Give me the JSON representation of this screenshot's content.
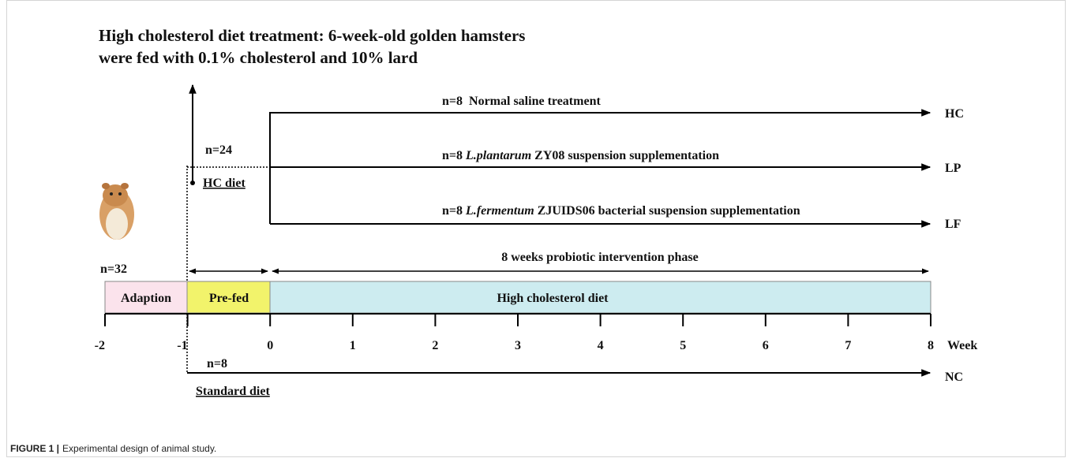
{
  "title": [
    "High cholesterol diet treatment: 6-week-old golden hamsters",
    "were fed with 0.1% cholesterol and 10% lard"
  ],
  "branches": [
    {
      "n": "n=8",
      "text": "Normal saline treatment",
      "end": "HC"
    },
    {
      "n": "n=8",
      "species": "L.plantarum",
      "text": "ZY08 suspension supplementation",
      "end": "LP"
    },
    {
      "n": "n=8",
      "species": "L.fermentum",
      "text": "ZJUIDS06 bacterial suspension supplementation",
      "end": "LF"
    }
  ],
  "pre_group": {
    "n": "n=24",
    "diet": "HC diet"
  },
  "start_group": {
    "n": "n=32"
  },
  "intervention": "8 weeks probiotic intervention phase",
  "phases": [
    "Adaption",
    "Pre-fed",
    "High cholesterol diet"
  ],
  "timeline": {
    "ticks": [
      "-2",
      "-1",
      "0",
      "1",
      "2",
      "3",
      "4",
      "5",
      "6",
      "7",
      "8"
    ],
    "unit": "Week"
  },
  "control": {
    "n": "n=8",
    "diet": "Standard diet",
    "end": "NC"
  },
  "caption": {
    "label": "FIGURE 1 |",
    "text": "Experimental design of animal study."
  }
}
